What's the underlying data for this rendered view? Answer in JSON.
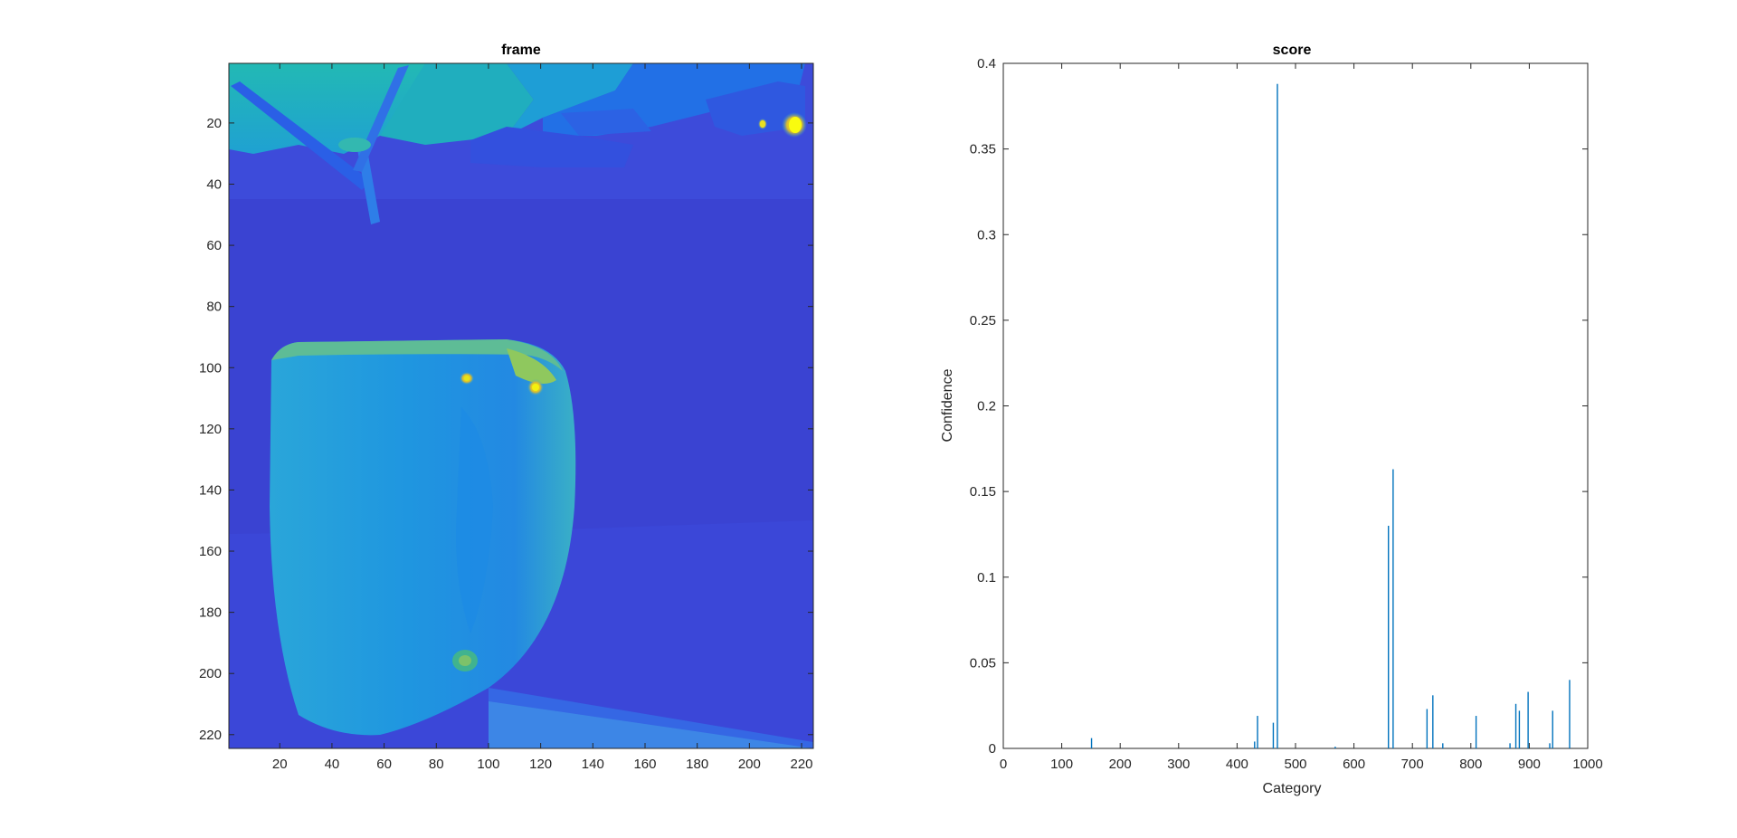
{
  "chart_data": [
    {
      "type": "heatmap",
      "title": "frame",
      "xlabel": "",
      "ylabel": "",
      "xlim": [
        0.5,
        224.5
      ],
      "ylim": [
        0.5,
        224.5
      ],
      "y_reversed": true,
      "grid": false,
      "colormap": "parula",
      "xticks": [
        20,
        40,
        60,
        80,
        100,
        120,
        140,
        160,
        180,
        200,
        220
      ],
      "yticks": [
        20,
        40,
        60,
        80,
        100,
        120,
        140,
        160,
        180,
        200,
        220
      ],
      "image_description_values": "grayscale image of a mug on a table, rendered in parula colormap"
    },
    {
      "type": "bar",
      "title": "score",
      "xlabel": "Category",
      "ylabel": "Confidence",
      "xlim": [
        0,
        1000
      ],
      "ylim": [
        0,
        0.4
      ],
      "grid": false,
      "bar_color": "#0072BD",
      "xticks": [
        0,
        100,
        200,
        300,
        400,
        500,
        600,
        700,
        800,
        900,
        1000
      ],
      "yticks": [
        0,
        0.05,
        0.1,
        0.15,
        0.2,
        0.25,
        0.3,
        0.35,
        0.4
      ],
      "x": [
        151,
        430,
        435,
        462,
        469,
        568,
        659,
        667,
        725,
        735,
        752,
        809,
        867,
        877,
        883,
        898,
        935,
        940,
        969
      ],
      "values": [
        0.006,
        0.004,
        0.019,
        0.015,
        0.388,
        0.001,
        0.13,
        0.163,
        0.023,
        0.031,
        0.003,
        0.019,
        0.003,
        0.026,
        0.022,
        0.033,
        0.003,
        0.022,
        0.04
      ]
    }
  ]
}
